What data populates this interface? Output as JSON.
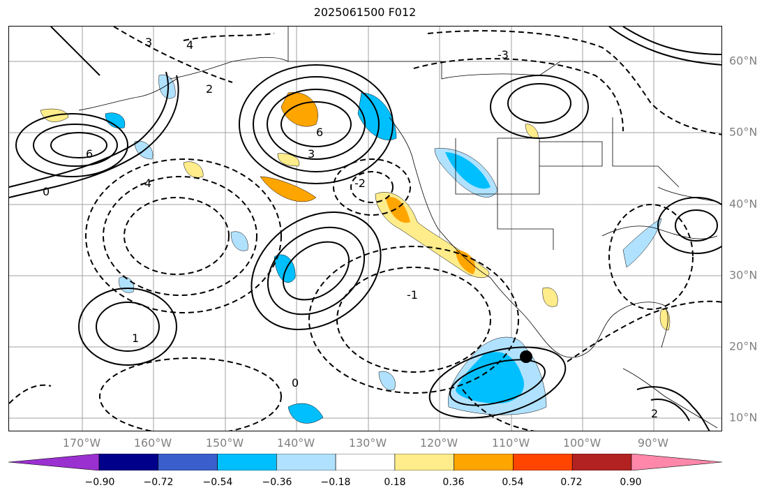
{
  "title": "2025061500 F012",
  "map": {
    "lon_labels": [
      "170°W",
      "160°W",
      "150°W",
      "140°W",
      "130°W",
      "120°W",
      "110°W",
      "100°W",
      "90°W"
    ],
    "lat_labels": [
      "60°N",
      "50°N",
      "40°N",
      "30°N",
      "20°N",
      "10°N"
    ],
    "contour_labels": [
      "3",
      "4",
      "2",
      "6",
      "0",
      "-3",
      "-4",
      "-2",
      "-1",
      "1",
      "3",
      "6",
      "0",
      "2"
    ],
    "marker": {
      "name": "black-dot",
      "color": "#000000"
    }
  },
  "colorbar": {
    "ticks": [
      "−0.90",
      "−0.72",
      "−0.54",
      "−0.36",
      "−0.18",
      "0.18",
      "0.36",
      "0.54",
      "0.72",
      "0.90"
    ],
    "colors": [
      "#9b30d0",
      "#00008b",
      "#3a5fcd",
      "#00bfff",
      "#b0e2ff",
      "#ffffff",
      "#ffec8b",
      "#ffa500",
      "#ff4500",
      "#b22222",
      "#ff88aa"
    ]
  }
}
